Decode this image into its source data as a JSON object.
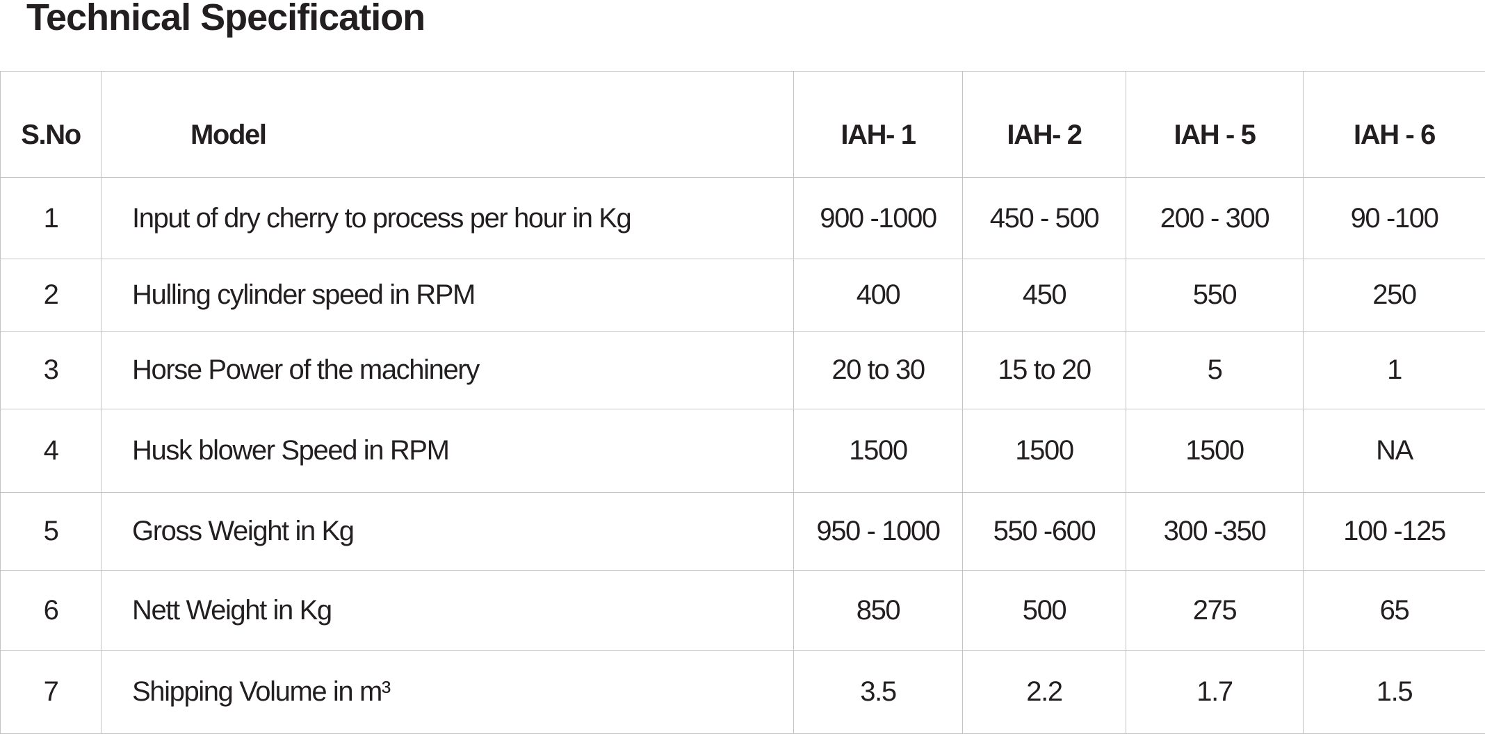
{
  "title": "Technical Specification",
  "table": {
    "headers": [
      "S.No",
      "Model",
      "IAH- 1",
      "IAH- 2",
      "IAH - 5",
      "IAH - 6"
    ],
    "rows": [
      [
        "1",
        "Input of dry cherry to process per hour in Kg",
        "900 -1000",
        "450 - 500",
        "200 - 300",
        "90 -100"
      ],
      [
        "2",
        "Hulling cylinder speed in RPM",
        "400",
        "450",
        "550",
        "250"
      ],
      [
        "3",
        "Horse Power of the machinery",
        "20 to 30",
        "15 to 20",
        "5",
        "1"
      ],
      [
        "4",
        "Husk blower Speed in RPM",
        "1500",
        "1500",
        "1500",
        "NA"
      ],
      [
        "5",
        "Gross Weight in Kg",
        "950 - 1000",
        "550 -600",
        "300 -350",
        "100 -125"
      ],
      [
        "6",
        "Nett Weight in Kg",
        "850",
        "500",
        "275",
        "65"
      ],
      [
        "7",
        "Shipping Volume in m³",
        "3.5",
        "2.2",
        "1.7",
        "1.5"
      ]
    ]
  }
}
